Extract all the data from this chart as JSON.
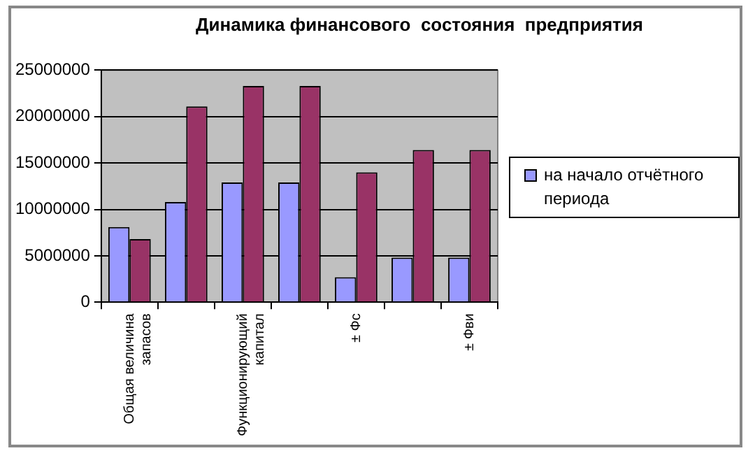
{
  "chart_data": {
    "type": "bar",
    "title": "Динамика финансового  состояния  предприятия",
    "categories": [
      "Общая величина запасов",
      null,
      "Функционирующий капитал",
      null,
      "± Фс",
      null,
      "± Фви"
    ],
    "series": [
      {
        "name": "на начало отчётного периода",
        "color": "#9999ff",
        "values": [
          8100000,
          10800000,
          12900000,
          12900000,
          2700000,
          4800000,
          4800000
        ]
      },
      {
        "color": "#993366",
        "values": [
          6800000,
          21100000,
          23300000,
          23300000,
          14000000,
          16400000,
          16400000
        ]
      }
    ],
    "ylim": [
      0,
      25000000
    ],
    "yticks": [
      0,
      5000000,
      10000000,
      15000000,
      20000000,
      25000000
    ],
    "grid": "y",
    "legend": "right"
  }
}
